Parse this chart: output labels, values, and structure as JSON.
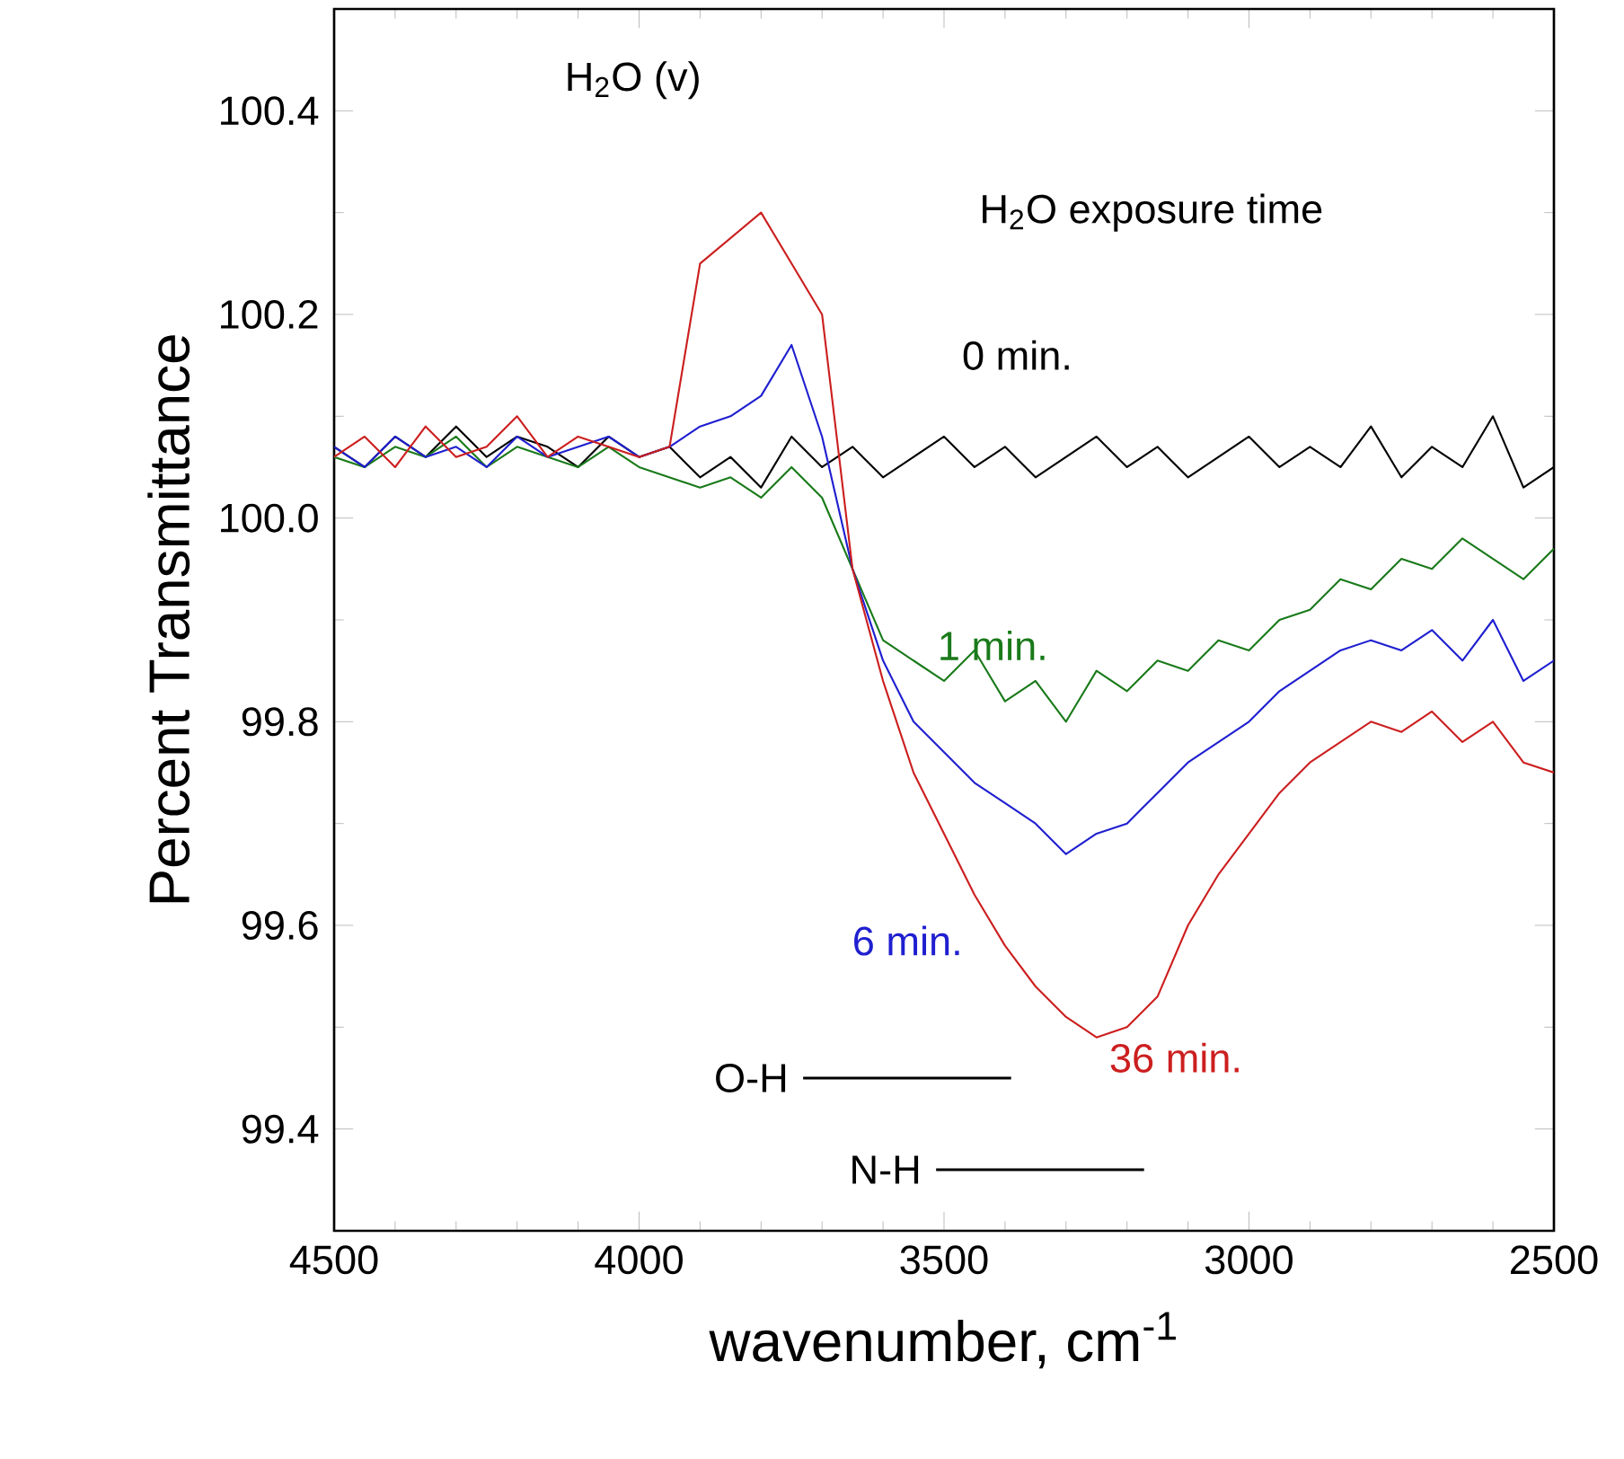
{
  "chart_data": {
    "type": "line",
    "xlabel": "wavenumber, cm$^{-1}$",
    "ylabel": "Percent Transmittance",
    "annotations": [
      "H$_{2}$O (v)",
      "H$_{2}$O exposure time"
    ],
    "x": [
      4500,
      4450,
      4400,
      4350,
      4300,
      4250,
      4200,
      4150,
      4100,
      4050,
      4000,
      3950,
      3900,
      3850,
      3800,
      3750,
      3700,
      3650,
      3600,
      3550,
      3500,
      3450,
      3400,
      3350,
      3300,
      3250,
      3200,
      3150,
      3100,
      3050,
      3000,
      2950,
      2900,
      2850,
      2800,
      2750,
      2700,
      2650,
      2600,
      2550,
      2500
    ],
    "xlim": [
      4500,
      2500
    ],
    "xticks": [
      4500,
      4000,
      3500,
      3000,
      2500
    ],
    "ylim": [
      99.3,
      100.5
    ],
    "yticks": [
      99.4,
      99.6,
      99.8,
      {
        "value": 100.0,
        "label": "100.0"
      },
      100.2,
      100.4
    ],
    "marker": "none",
    "line_style": "solid",
    "series": [
      {
        "name": "0 min.",
        "color": "#000000",
        "values": [
          100.07,
          100.05,
          100.08,
          100.06,
          100.09,
          100.06,
          100.08,
          100.07,
          100.05,
          100.08,
          100.06,
          100.07,
          100.04,
          100.06,
          100.03,
          100.08,
          100.05,
          100.07,
          100.04,
          100.06,
          100.08,
          100.05,
          100.07,
          100.04,
          100.06,
          100.08,
          100.05,
          100.07,
          100.04,
          100.06,
          100.08,
          100.05,
          100.07,
          100.05,
          100.09,
          100.04,
          100.07,
          100.05,
          100.1,
          100.03,
          100.05
        ]
      },
      {
        "name": "1 min.",
        "color": "#1a7a1a",
        "values": [
          100.06,
          100.05,
          100.07,
          100.06,
          100.08,
          100.05,
          100.07,
          100.06,
          100.05,
          100.07,
          100.05,
          100.04,
          100.03,
          100.04,
          100.02,
          100.05,
          100.02,
          99.95,
          99.88,
          99.86,
          99.84,
          99.87,
          99.82,
          99.84,
          99.8,
          99.85,
          99.83,
          99.86,
          99.85,
          99.88,
          99.87,
          99.9,
          99.91,
          99.94,
          99.93,
          99.96,
          99.95,
          99.98,
          99.96,
          99.94,
          99.97
        ]
      },
      {
        "name": "6 min.",
        "color": "#1f1fd0",
        "values": [
          100.07,
          100.05,
          100.08,
          100.06,
          100.07,
          100.05,
          100.08,
          100.06,
          100.07,
          100.08,
          100.06,
          100.07,
          100.09,
          100.1,
          100.12,
          100.17,
          100.08,
          99.95,
          99.86,
          99.8,
          99.77,
          99.74,
          99.72,
          99.7,
          99.67,
          99.69,
          99.7,
          99.73,
          99.76,
          99.78,
          99.8,
          99.83,
          99.85,
          99.87,
          99.88,
          99.87,
          99.89,
          99.86,
          99.9,
          99.84,
          99.86
        ]
      },
      {
        "name": "36 min.",
        "color": "#cc1f1f",
        "values": [
          100.06,
          100.08,
          100.05,
          100.09,
          100.06,
          100.07,
          100.1,
          100.06,
          100.08,
          100.07,
          100.06,
          100.07,
          100.25,
          null,
          100.3,
          null,
          100.2,
          99.95,
          99.84,
          99.75,
          99.69,
          99.63,
          99.58,
          99.54,
          99.51,
          99.49,
          99.5,
          99.53,
          99.6,
          99.65,
          99.69,
          99.73,
          99.76,
          99.78,
          99.8,
          99.79,
          99.81,
          99.78,
          99.8,
          99.76,
          99.75
        ]
      },
      {
        "name": "O-H",
        "color": "#000000",
        "x": [
          3731,
          3390
        ],
        "values": [
          99.45,
          99.45
        ]
      },
      {
        "name": "N-H",
        "color": "#000000",
        "x": [
          3513,
          3172
        ],
        "values": [
          99.36,
          99.36
        ]
      }
    ]
  }
}
